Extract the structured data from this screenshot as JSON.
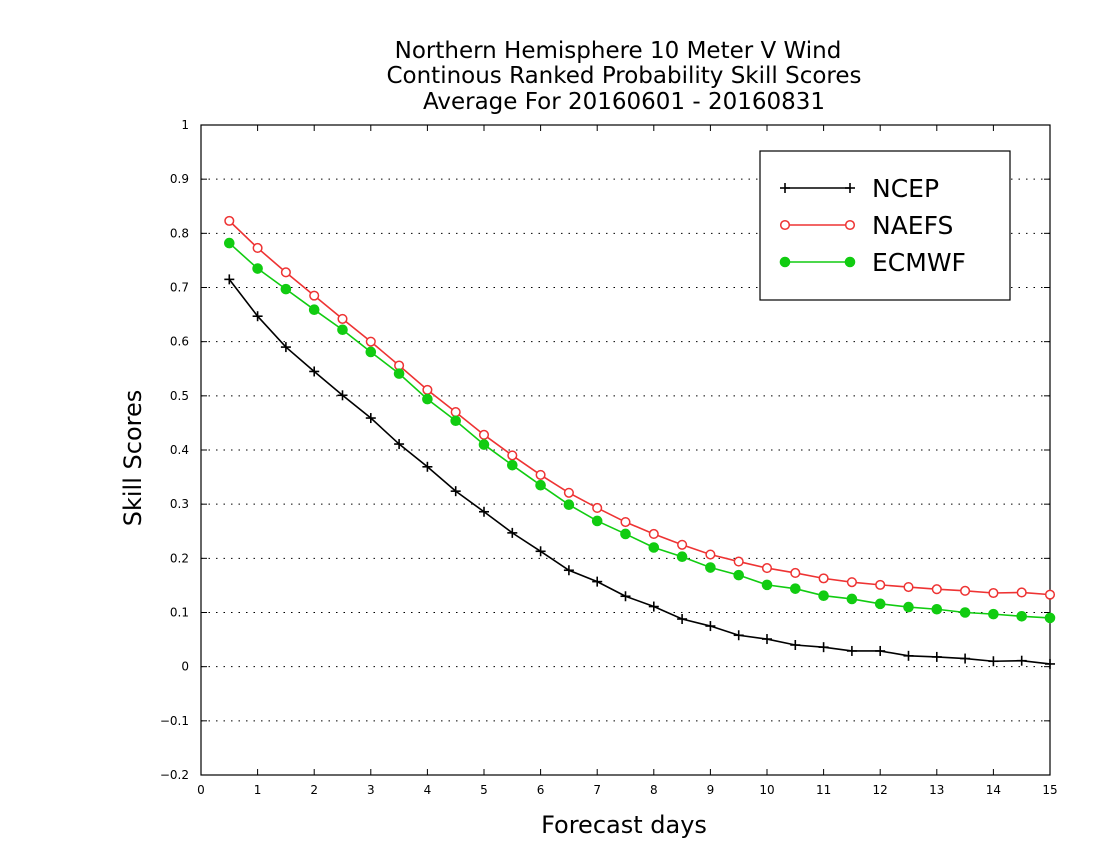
{
  "chart_data": {
    "type": "line",
    "title_lines": [
      "Northern Hemisphere 10 Meter V Wind",
      "Continous Ranked Probability Skill Scores",
      "Average For 20160601 - 20160831"
    ],
    "xlabel": "Forecast days",
    "ylabel": "Skill Scores",
    "xlim": [
      0,
      15
    ],
    "ylim": [
      -0.2,
      1
    ],
    "x_ticks": [
      0,
      1,
      2,
      3,
      4,
      5,
      6,
      7,
      8,
      9,
      10,
      11,
      12,
      13,
      14,
      15
    ],
    "y_ticks": [
      -0.2,
      -0.1,
      0,
      0.1,
      0.2,
      0.3,
      0.4,
      0.5,
      0.6,
      0.7,
      0.8,
      0.9,
      1
    ],
    "grid": "horizontal dotted",
    "legend_position": "top-right",
    "x": [
      0.5,
      1,
      1.5,
      2,
      2.5,
      3,
      3.5,
      4,
      4.5,
      5,
      5.5,
      6,
      6.5,
      7,
      7.5,
      8,
      8.5,
      9,
      9.5,
      10,
      10.5,
      11,
      11.5,
      12,
      12.5,
      13,
      13.5,
      14,
      14.5,
      15
    ],
    "series": [
      {
        "name": "NCEP",
        "color": "#000000",
        "marker": "plus",
        "values": [
          0.715,
          0.647,
          0.59,
          0.545,
          0.501,
          0.459,
          0.411,
          0.369,
          0.324,
          0.286,
          0.247,
          0.213,
          0.178,
          0.157,
          0.13,
          0.111,
          0.088,
          0.075,
          0.058,
          0.051,
          0.04,
          0.036,
          0.029,
          0.029,
          0.02,
          0.018,
          0.015,
          0.01,
          0.011,
          0.005
        ]
      },
      {
        "name": "NAEFS",
        "color": "#ee3333",
        "marker": "open-circle",
        "values": [
          0.823,
          0.773,
          0.728,
          0.685,
          0.642,
          0.6,
          0.556,
          0.511,
          0.47,
          0.428,
          0.39,
          0.354,
          0.321,
          0.293,
          0.267,
          0.245,
          0.225,
          0.207,
          0.194,
          0.182,
          0.173,
          0.163,
          0.156,
          0.151,
          0.147,
          0.143,
          0.14,
          0.136,
          0.137,
          0.133
        ]
      },
      {
        "name": "ECMWF",
        "color": "#11cc11",
        "marker": "filled-circle",
        "values": [
          0.782,
          0.735,
          0.697,
          0.659,
          0.622,
          0.581,
          0.541,
          0.494,
          0.454,
          0.41,
          0.372,
          0.335,
          0.299,
          0.269,
          0.245,
          0.22,
          0.203,
          0.183,
          0.169,
          0.151,
          0.144,
          0.131,
          0.125,
          0.116,
          0.11,
          0.106,
          0.1,
          0.097,
          0.093,
          0.09
        ]
      }
    ]
  }
}
